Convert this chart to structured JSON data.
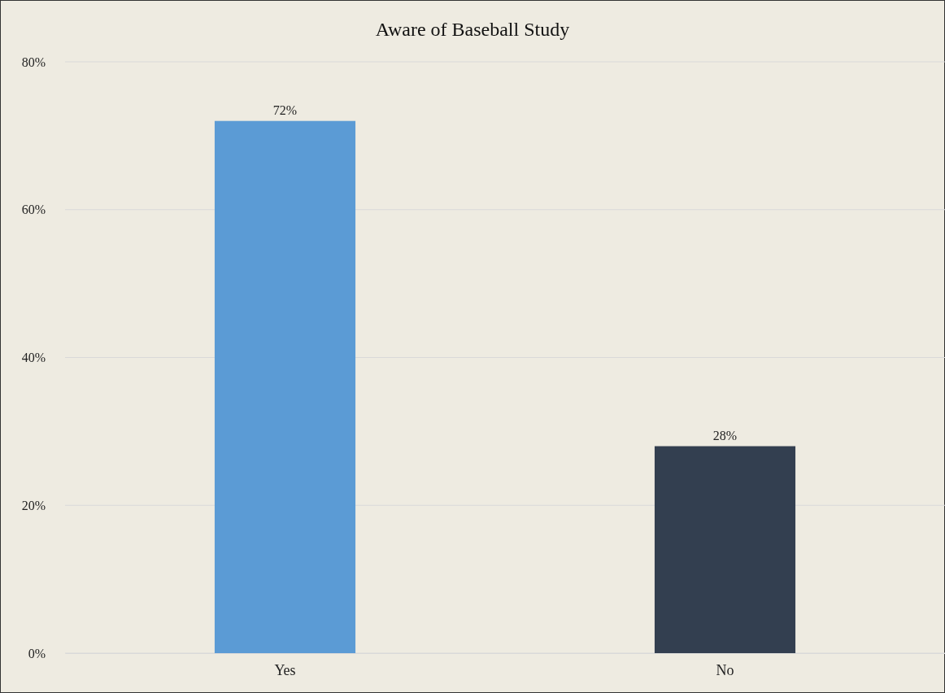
{
  "chart_data": {
    "type": "bar",
    "title": "Aware of Baseball Study",
    "categories": [
      "Yes",
      "No"
    ],
    "values": [
      72,
      28
    ],
    "colors": [
      "#5b9bd5",
      "#333f50"
    ],
    "ylim": [
      0,
      80
    ],
    "yticks": [
      {
        "value": 0,
        "label": "0%"
      },
      {
        "value": 20,
        "label": "20%"
      },
      {
        "value": 40,
        "label": "40%"
      },
      {
        "value": 60,
        "label": "60%"
      },
      {
        "value": 80,
        "label": "80%"
      }
    ],
    "grid": "y",
    "value_labels": [
      "72%",
      "28%"
    ]
  }
}
